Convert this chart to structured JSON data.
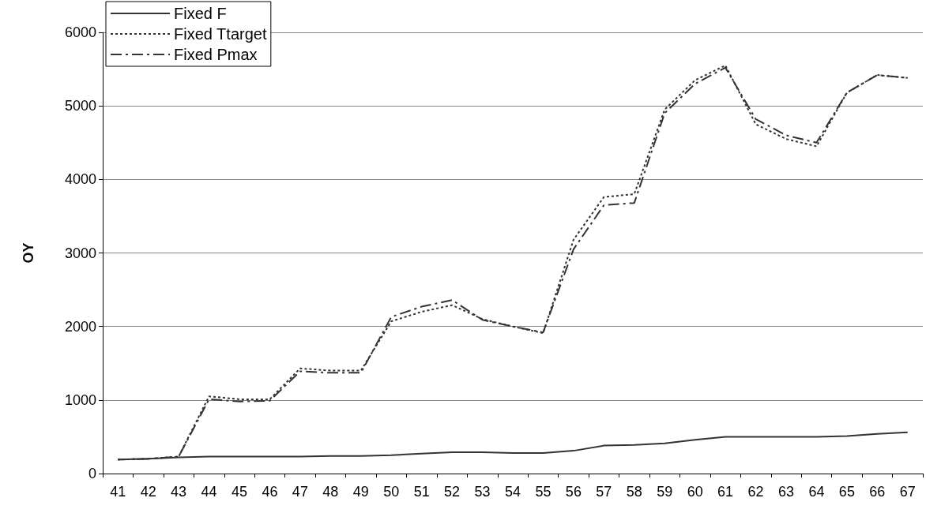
{
  "chart_data": {
    "type": "line",
    "ylabel": "OY",
    "categories": [
      "41",
      "42",
      "43",
      "44",
      "45",
      "46",
      "47",
      "48",
      "49",
      "50",
      "51",
      "52",
      "53",
      "54",
      "55",
      "56",
      "57",
      "58",
      "59",
      "60",
      "61",
      "62",
      "63",
      "64",
      "65",
      "66",
      "67"
    ],
    "series": [
      {
        "name": "Fixed F",
        "color": "#333333",
        "line_style": "solid",
        "values": [
          190,
          200,
          220,
          230,
          230,
          230,
          230,
          240,
          240,
          250,
          270,
          290,
          290,
          280,
          280,
          310,
          380,
          390,
          410,
          460,
          500,
          500,
          500,
          500,
          510,
          540,
          560
        ]
      },
      {
        "name": "Fixed Ttarget",
        "color": "#333333",
        "line_style": "dotted",
        "values": [
          190,
          200,
          230,
          1050,
          1010,
          1010,
          1430,
          1400,
          1400,
          2070,
          2200,
          2290,
          2100,
          2000,
          1910,
          3180,
          3760,
          3800,
          4950,
          5350,
          5550,
          4750,
          4550,
          4450,
          5180,
          5420,
          5380
        ]
      },
      {
        "name": "Fixed Pmax",
        "color": "#333333",
        "line_style": "dashed",
        "values": [
          190,
          200,
          230,
          1010,
          980,
          990,
          1390,
          1370,
          1370,
          2130,
          2270,
          2360,
          2090,
          2000,
          1920,
          3050,
          3650,
          3680,
          4900,
          5300,
          5520,
          4820,
          4600,
          4500,
          5180,
          5420,
          5380
        ]
      }
    ],
    "ylim": [
      0,
      6000
    ],
    "yticks": [
      0,
      1000,
      2000,
      3000,
      4000,
      5000,
      6000
    ],
    "grid": "y",
    "legend": "top left",
    "marker": "none"
  }
}
